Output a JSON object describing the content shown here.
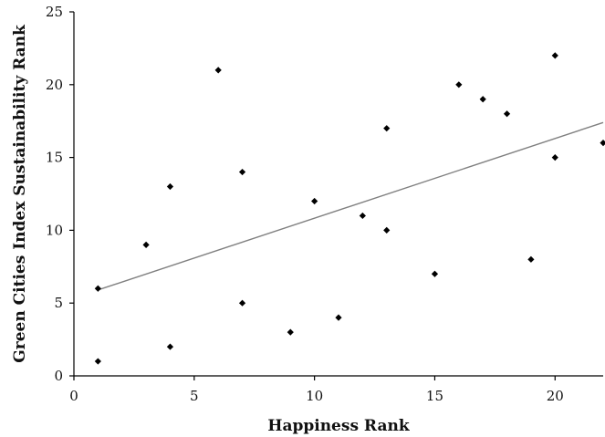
{
  "chart_data": {
    "type": "scatter",
    "title": "",
    "xlabel": "Happiness Rank",
    "ylabel": "Green Cities Index Sustainability Rank",
    "xlim": [
      0,
      22
    ],
    "ylim": [
      0,
      25
    ],
    "xticks": [
      "0",
      "5",
      "10",
      "15",
      "20"
    ],
    "yticks": [
      "0",
      "5",
      "10",
      "15",
      "20",
      "25"
    ],
    "grid": false,
    "legend": "none",
    "points": [
      {
        "x": 1,
        "y": 1
      },
      {
        "x": 1,
        "y": 6
      },
      {
        "x": 3,
        "y": 9
      },
      {
        "x": 4,
        "y": 13
      },
      {
        "x": 4,
        "y": 2
      },
      {
        "x": 6,
        "y": 21
      },
      {
        "x": 7,
        "y": 14
      },
      {
        "x": 7,
        "y": 5
      },
      {
        "x": 9,
        "y": 3
      },
      {
        "x": 10,
        "y": 12
      },
      {
        "x": 11,
        "y": 4
      },
      {
        "x": 12,
        "y": 11
      },
      {
        "x": 13,
        "y": 17
      },
      {
        "x": 13,
        "y": 10
      },
      {
        "x": 15,
        "y": 7
      },
      {
        "x": 16,
        "y": 20
      },
      {
        "x": 17,
        "y": 19
      },
      {
        "x": 18,
        "y": 18
      },
      {
        "x": 19,
        "y": 8
      },
      {
        "x": 20,
        "y": 22
      },
      {
        "x": 20,
        "y": 15
      },
      {
        "x": 22,
        "y": 16
      }
    ],
    "trendline": {
      "type": "linear",
      "x": [
        1,
        22
      ],
      "y": [
        5.9,
        17.4
      ]
    },
    "colors": {
      "points": "#000000",
      "trendline": "#808080",
      "axes": "#000000"
    }
  }
}
